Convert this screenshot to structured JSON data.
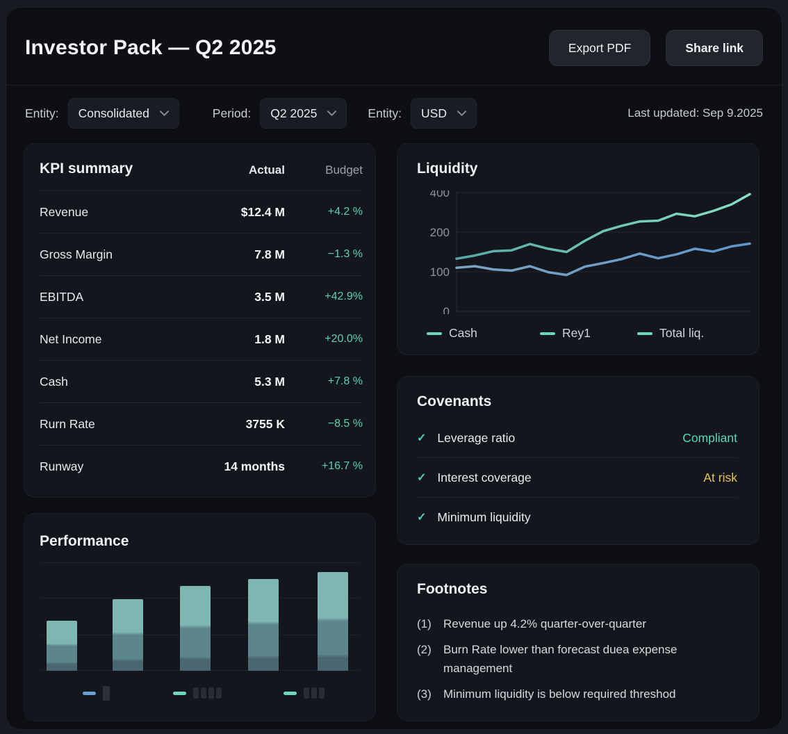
{
  "header": {
    "title": "Investor Pack — Q2 2025",
    "export_button": "Export PDF",
    "share_button": "Share link"
  },
  "filters": {
    "entity_label": "Entity:",
    "entity_value": "Consolidated",
    "period_label": "Period:",
    "period_value": "Q2 2025",
    "currency_label": "Entity:",
    "currency_value": "USD",
    "last_updated": "Last updated: Sep 9.2025"
  },
  "kpi": {
    "title": "KPI summary",
    "columns": [
      "Actual",
      "Budget"
    ],
    "rows": [
      {
        "label": "Revenue",
        "actual": "$12.4 M",
        "budget": "+4.2 %"
      },
      {
        "label": "Gross Margin",
        "actual": "7.8 M",
        "budget": "−1.3 %"
      },
      {
        "label": "EBITDA",
        "actual": "3.5 M",
        "budget": "+42.9%"
      },
      {
        "label": "Net Income",
        "actual": "1.8 M",
        "budget": "+20.0%"
      },
      {
        "label": "Cash",
        "actual": "5.3 M",
        "budget": "+7.8 %"
      },
      {
        "label": "Rurn Rate",
        "actual": "3755 K",
        "budget": "−8.5 %"
      },
      {
        "label": "Runway",
        "actual": "14 months",
        "budget": "+16.7 %"
      }
    ]
  },
  "covenants": {
    "title": "Covenants",
    "rows": [
      {
        "label": "Leverage ratio",
        "status": "Compliant",
        "status_color": "#57d6c0"
      },
      {
        "label": "Interest coverage",
        "status": "At risk",
        "status_color": "#e6c35a"
      },
      {
        "label": "Minimum liquidity",
        "status": "",
        "status_color": ""
      }
    ]
  },
  "footnotes": {
    "title": "Footnotes",
    "items": [
      {
        "num": "(1)",
        "text": "Revenue up 4.2% quarter-over-quarter"
      },
      {
        "num": "(2)",
        "text": "Burn Rate lower than forecast duea expense management"
      },
      {
        "num": "(3)",
        "text": "Minimum liquidity is below required threshod"
      }
    ]
  },
  "chart_data": [
    {
      "id": "liquidity",
      "type": "line",
      "title": "Liquidity",
      "yticks": [
        0,
        100,
        200,
        400
      ],
      "ylim": [
        0,
        400
      ],
      "grid": true,
      "legend_position": "bottom",
      "legend": [
        {
          "label": "Cash",
          "color": "#6fd4c0"
        },
        {
          "label": "Rey1",
          "color": "#6fd4c0"
        },
        {
          "label": "Total liq.",
          "color": "#6fd4c0"
        }
      ],
      "series": [
        {
          "name": "Cash",
          "gradient": [
            "#7da4c0",
            "#5f96ce"
          ],
          "values": [
            110,
            114,
            106,
            103,
            114,
            99,
            92,
            113,
            122,
            132,
            146,
            134,
            144,
            158,
            151,
            164,
            171
          ]
        },
        {
          "name": "Total liq.",
          "gradient": [
            "#58a8a5",
            "#86e2c4"
          ],
          "values": [
            133,
            141,
            152,
            154,
            170,
            158,
            150,
            178,
            205,
            232,
            254,
            258,
            293,
            280,
            307,
            340,
            392
          ]
        }
      ]
    },
    {
      "id": "performance",
      "type": "bar",
      "title": "Performance",
      "values": [
        72,
        103,
        122,
        132,
        142
      ],
      "ylim": [
        0,
        156
      ],
      "grid": true,
      "bar_colors": {
        "top": "#80b6b2",
        "mid": "#5d868c",
        "bottom": "#4a666f"
      },
      "legend": [
        {
          "dash_color": "#6b9fd0",
          "blocks": 1
        },
        {
          "dash_color": "#6fd4c0",
          "blocks": 4
        },
        {
          "dash_color": "#6fd4c0",
          "blocks": 3
        }
      ]
    }
  ],
  "colors": {
    "accent_teal": "#5ed0b8",
    "warning_yellow": "#e6c35a",
    "line_blue": "#6b9fd0",
    "line_teal": "#6fd4c0",
    "check_teal": "#4fd0bb"
  }
}
